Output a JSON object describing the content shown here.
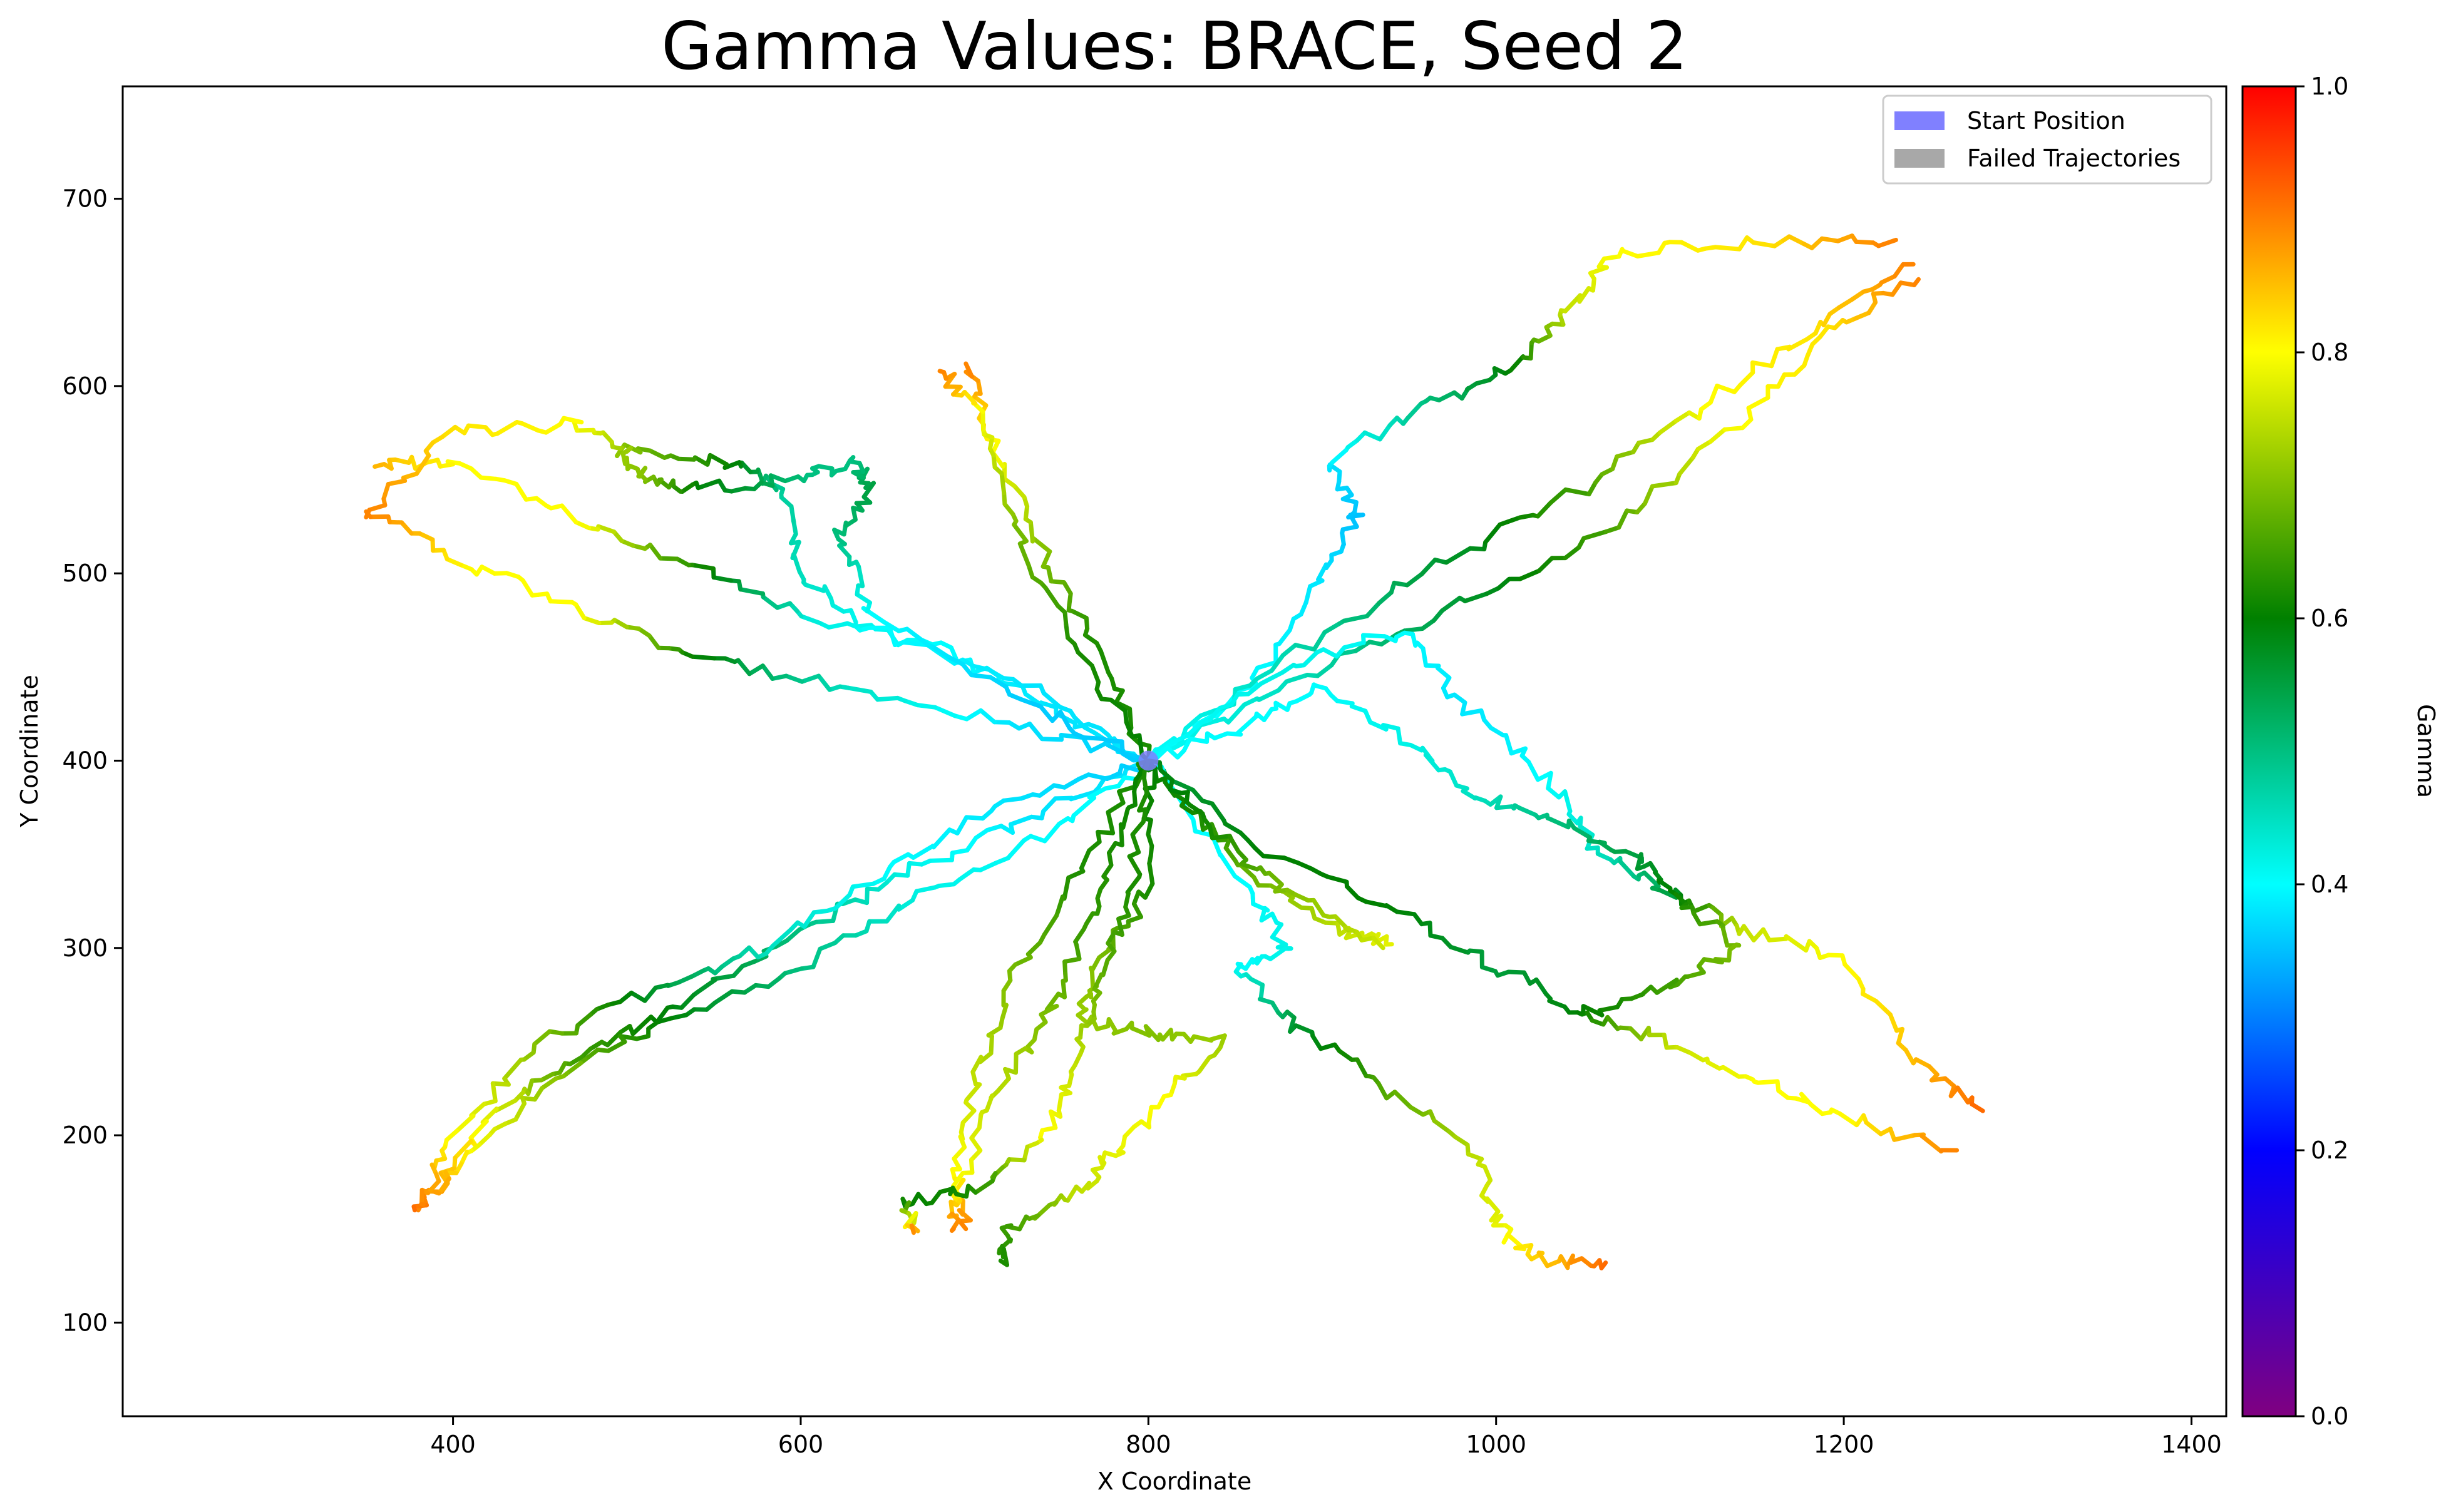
{
  "chart_data": {
    "type": "line",
    "title": "Gamma Values: BRACE, Seed 2",
    "xlabel": "X Coordinate",
    "ylabel": "Y Coordinate",
    "xlim": [
      210,
      1420
    ],
    "ylim": [
      50,
      760
    ],
    "xticks": [
      "400",
      "600",
      "800",
      "1000",
      "1200",
      "1400"
    ],
    "yticks": [
      "100",
      "200",
      "300",
      "400",
      "500",
      "600",
      "700"
    ],
    "grid": false,
    "legend": {
      "placement": "top-right",
      "entries": [
        {
          "label": "Start Position",
          "color": "#8080ff"
        },
        {
          "label": "Failed Trajectories",
          "color": "#a8a8a8"
        }
      ]
    },
    "start_position": {
      "x": 800,
      "y": 400
    },
    "colorbar": {
      "label": "Gamma",
      "range": [
        0,
        1
      ],
      "ticks": [
        "0.0",
        "0.2",
        "0.4",
        "0.6",
        "0.8",
        "1.0"
      ],
      "colormap": [
        {
          "v": 0.0,
          "color": "#800080"
        },
        {
          "v": 0.2,
          "color": "#0000ff"
        },
        {
          "v": 0.4,
          "color": "#00ffff"
        },
        {
          "v": 0.6,
          "color": "#008000"
        },
        {
          "v": 0.8,
          "color": "#ffff00"
        },
        {
          "v": 1.0,
          "color": "#ff0000"
        }
      ]
    },
    "trajectories": [
      {
        "points": [
          [
            800,
            400,
            0.38
          ],
          [
            740,
            430,
            0.38
          ],
          [
            680,
            460,
            0.4
          ],
          [
            610,
            475,
            0.42
          ],
          [
            540,
            505,
            0.62
          ],
          [
            470,
            530,
            0.8
          ],
          [
            400,
            560,
            0.8
          ],
          [
            355,
            557,
            0.86
          ]
        ]
      },
      {
        "points": [
          [
            800,
            400,
            0.38
          ],
          [
            730,
            440,
            0.38
          ],
          [
            640,
            470,
            0.4
          ],
          [
            600,
            500,
            0.45
          ],
          [
            590,
            545,
            0.48
          ],
          [
            560,
            560,
            0.6
          ],
          [
            500,
            565,
            0.7
          ],
          [
            470,
            580,
            0.8
          ],
          [
            400,
            575,
            0.82
          ],
          [
            350,
            530,
            0.9
          ]
        ]
      },
      {
        "points": [
          [
            800,
            400,
            0.36
          ],
          [
            720,
            420,
            0.38
          ],
          [
            620,
            440,
            0.45
          ],
          [
            540,
            455,
            0.6
          ],
          [
            470,
            480,
            0.8
          ],
          [
            410,
            505,
            0.8
          ],
          [
            350,
            533,
            0.9
          ]
        ]
      },
      {
        "points": [
          [
            800,
            400,
            0.36
          ],
          [
            730,
            430,
            0.36
          ],
          [
            640,
            480,
            0.4
          ],
          [
            620,
            520,
            0.5
          ],
          [
            640,
            545,
            0.55
          ],
          [
            630,
            560,
            0.5
          ],
          [
            600,
            550,
            0.5
          ],
          [
            540,
            545,
            0.6
          ],
          [
            510,
            550,
            0.7
          ],
          [
            500,
            565,
            0.72
          ]
        ]
      },
      {
        "points": [
          [
            800,
            400,
            0.62
          ],
          [
            770,
            460,
            0.62
          ],
          [
            740,
            510,
            0.7
          ],
          [
            710,
            570,
            0.8
          ],
          [
            695,
            612,
            0.9
          ]
        ]
      },
      {
        "points": [
          [
            800,
            400,
            0.6
          ],
          [
            760,
            460,
            0.62
          ],
          [
            720,
            530,
            0.7
          ],
          [
            700,
            590,
            0.8
          ],
          [
            680,
            608,
            0.9
          ]
        ]
      },
      {
        "points": [
          [
            800,
            400,
            0.4
          ],
          [
            860,
            440,
            0.4
          ],
          [
            900,
            500,
            0.38
          ],
          [
            920,
            530,
            0.35
          ],
          [
            905,
            560,
            0.38
          ],
          [
            960,
            590,
            0.5
          ],
          [
            1010,
            610,
            0.6
          ],
          [
            1040,
            640,
            0.75
          ],
          [
            1070,
            672,
            0.8
          ],
          [
            1150,
            676,
            0.82
          ],
          [
            1230,
            678,
            0.9
          ]
        ]
      },
      {
        "points": [
          [
            800,
            400,
            0.4
          ],
          [
            870,
            450,
            0.45
          ],
          [
            960,
            500,
            0.55
          ],
          [
            1050,
            545,
            0.65
          ],
          [
            1120,
            590,
            0.8
          ],
          [
            1180,
            630,
            0.82
          ],
          [
            1240,
            665,
            0.9
          ]
        ]
      },
      {
        "points": [
          [
            800,
            400,
            0.4
          ],
          [
            880,
            440,
            0.45
          ],
          [
            970,
            480,
            0.55
          ],
          [
            1060,
            520,
            0.65
          ],
          [
            1140,
            580,
            0.8
          ],
          [
            1190,
            630,
            0.82
          ],
          [
            1243,
            657,
            0.9
          ]
        ]
      },
      {
        "points": [
          [
            800,
            400,
            0.4
          ],
          [
            880,
            450,
            0.42
          ],
          [
            950,
            470,
            0.4
          ],
          [
            980,
            430,
            0.38
          ],
          [
            1030,
            390,
            0.4
          ],
          [
            1060,
            350,
            0.45
          ],
          [
            1100,
            330,
            0.55
          ],
          [
            1140,
            310,
            0.75
          ],
          [
            1200,
            295,
            0.8
          ],
          [
            1240,
            240,
            0.85
          ],
          [
            1280,
            213,
            0.92
          ]
        ]
      },
      {
        "points": [
          [
            800,
            400,
            0.4
          ],
          [
            860,
            420,
            0.4
          ],
          [
            900,
            440,
            0.4
          ],
          [
            950,
            410,
            0.42
          ],
          [
            990,
            380,
            0.45
          ],
          [
            1030,
            370,
            0.5
          ],
          [
            1080,
            350,
            0.55
          ],
          [
            1100,
            330,
            0.6
          ],
          [
            1140,
            300,
            0.7
          ],
          [
            1100,
            280,
            0.65
          ],
          [
            1050,
            265,
            0.6
          ]
        ]
      },
      {
        "points": [
          [
            800,
            400,
            0.55
          ],
          [
            870,
            350,
            0.6
          ],
          [
            940,
            320,
            0.6
          ],
          [
            1000,
            290,
            0.55
          ],
          [
            1050,
            265,
            0.6
          ],
          [
            1100,
            250,
            0.75
          ],
          [
            1150,
            230,
            0.8
          ],
          [
            1200,
            210,
            0.8
          ],
          [
            1265,
            192,
            0.9
          ]
        ]
      },
      {
        "points": [
          [
            800,
            400,
            0.4
          ],
          [
            860,
            330,
            0.4
          ],
          [
            880,
            300,
            0.42
          ],
          [
            850,
            290,
            0.4
          ],
          [
            880,
            260,
            0.55
          ],
          [
            930,
            230,
            0.65
          ],
          [
            990,
            190,
            0.75
          ],
          [
            1000,
            150,
            0.78
          ],
          [
            1030,
            133,
            0.85
          ],
          [
            1063,
            132,
            0.92
          ]
        ]
      },
      {
        "points": [
          [
            800,
            400,
            0.6
          ],
          [
            830,
            370,
            0.62
          ],
          [
            870,
            330,
            0.7
          ],
          [
            910,
            310,
            0.75
          ],
          [
            940,
            302,
            0.78
          ]
        ]
      },
      {
        "points": [
          [
            800,
            400,
            0.58
          ],
          [
            840,
            360,
            0.62
          ],
          [
            880,
            330,
            0.7
          ],
          [
            935,
            300,
            0.76
          ]
        ]
      },
      {
        "points": [
          [
            800,
            400,
            0.38
          ],
          [
            730,
            370,
            0.38
          ],
          [
            660,
            340,
            0.42
          ],
          [
            600,
            310,
            0.5
          ],
          [
            530,
            270,
            0.58
          ],
          [
            470,
            240,
            0.65
          ],
          [
            420,
            210,
            0.78
          ],
          [
            380,
            160,
            0.9
          ]
        ]
      },
      {
        "points": [
          [
            800,
            400,
            0.4
          ],
          [
            740,
            360,
            0.4
          ],
          [
            670,
            330,
            0.42
          ],
          [
            600,
            290,
            0.5
          ],
          [
            520,
            260,
            0.6
          ],
          [
            460,
            230,
            0.7
          ],
          [
            410,
            190,
            0.8
          ],
          [
            378,
            160,
            0.92
          ]
        ]
      },
      {
        "points": [
          [
            800,
            400,
            0.36
          ],
          [
            720,
            380,
            0.38
          ],
          [
            650,
            340,
            0.4
          ],
          [
            580,
            300,
            0.45
          ],
          [
            520,
            280,
            0.55
          ],
          [
            450,
            250,
            0.7
          ],
          [
            400,
            200,
            0.8
          ],
          [
            383,
            163,
            0.9
          ]
        ]
      },
      {
        "points": [
          [
            800,
            400,
            0.62
          ],
          [
            760,
            340,
            0.62
          ],
          [
            720,
            280,
            0.7
          ],
          [
            700,
            230,
            0.75
          ],
          [
            690,
            180,
            0.8
          ],
          [
            695,
            150,
            0.9
          ]
        ]
      },
      {
        "points": [
          [
            800,
            400,
            0.6
          ],
          [
            780,
            350,
            0.62
          ],
          [
            760,
            300,
            0.65
          ],
          [
            740,
            260,
            0.7
          ],
          [
            710,
            220,
            0.75
          ],
          [
            690,
            170,
            0.8
          ],
          [
            688,
            150,
            0.9
          ]
        ]
      },
      {
        "points": [
          [
            800,
            400,
            0.6
          ],
          [
            800,
            330,
            0.62
          ],
          [
            770,
            290,
            0.7
          ],
          [
            760,
            262,
            0.72
          ],
          [
            800,
            255,
            0.7
          ],
          [
            840,
            250,
            0.72
          ],
          [
            810,
            220,
            0.8
          ],
          [
            780,
            190,
            0.78
          ],
          [
            760,
            170,
            0.75
          ],
          [
            720,
            150,
            0.65
          ],
          [
            715,
            133,
            0.62
          ]
        ]
      },
      {
        "points": [
          [
            800,
            400,
            0.62
          ],
          [
            790,
            330,
            0.62
          ],
          [
            770,
            280,
            0.68
          ],
          [
            760,
            240,
            0.75
          ],
          [
            740,
            200,
            0.8
          ],
          [
            700,
            170,
            0.62
          ],
          [
            660,
            165,
            0.6
          ],
          [
            665,
            148,
            0.9
          ]
        ]
      }
    ]
  }
}
